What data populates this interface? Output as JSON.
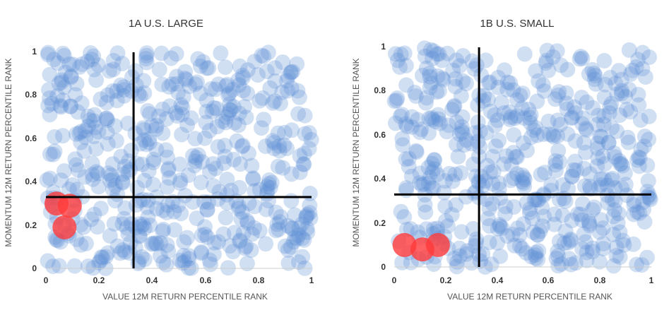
{
  "colors": {
    "bubble": "#5b8bd4",
    "highlight": "#ff3b3b",
    "divider": "#000000",
    "axis": "#cccccc"
  },
  "chart_data": [
    {
      "type": "scatter",
      "title": "1A U.S. LARGE",
      "xlabel": "VALUE 12M RETURN PERCENTILE RANK",
      "ylabel": "MOMENTUM 12M RETURN PERCENTILE RANK",
      "xlim": [
        0,
        1
      ],
      "ylim": [
        0,
        1
      ],
      "xticks": [
        "0",
        "0.2",
        "0.4",
        "0.6",
        "0.8",
        "1"
      ],
      "yticks": [
        "0",
        "0.2",
        "0.4",
        "0.6",
        "0.8",
        "1"
      ],
      "dividers": {
        "x": 0.33,
        "y": 0.33
      },
      "grid": false,
      "seed": 7,
      "point_count": 520,
      "highlight_points": [
        {
          "x": 0.04,
          "y": 0.3
        },
        {
          "x": 0.09,
          "y": 0.29
        },
        {
          "x": 0.07,
          "y": 0.19
        }
      ]
    },
    {
      "type": "scatter",
      "title": "1B U.S. SMALL",
      "xlabel": "VALUE 12M RETURN PERCENTILE RANK",
      "ylabel": "MOMENTUM 12M RETURN PERCENTILE RANK",
      "xlim": [
        0,
        1
      ],
      "ylim": [
        0,
        1
      ],
      "xticks": [
        "0",
        "0.2",
        "0.4",
        "0.6",
        "0.8",
        "1"
      ],
      "yticks": [
        "0",
        "0.2",
        "0.4",
        "0.6",
        "0.8",
        "1"
      ],
      "dividers": {
        "x": 0.33,
        "y": 0.33
      },
      "grid": false,
      "seed": 19,
      "point_count": 520,
      "highlight_points": [
        {
          "x": 0.04,
          "y": 0.1
        },
        {
          "x": 0.11,
          "y": 0.08
        },
        {
          "x": 0.17,
          "y": 0.1
        }
      ]
    }
  ]
}
